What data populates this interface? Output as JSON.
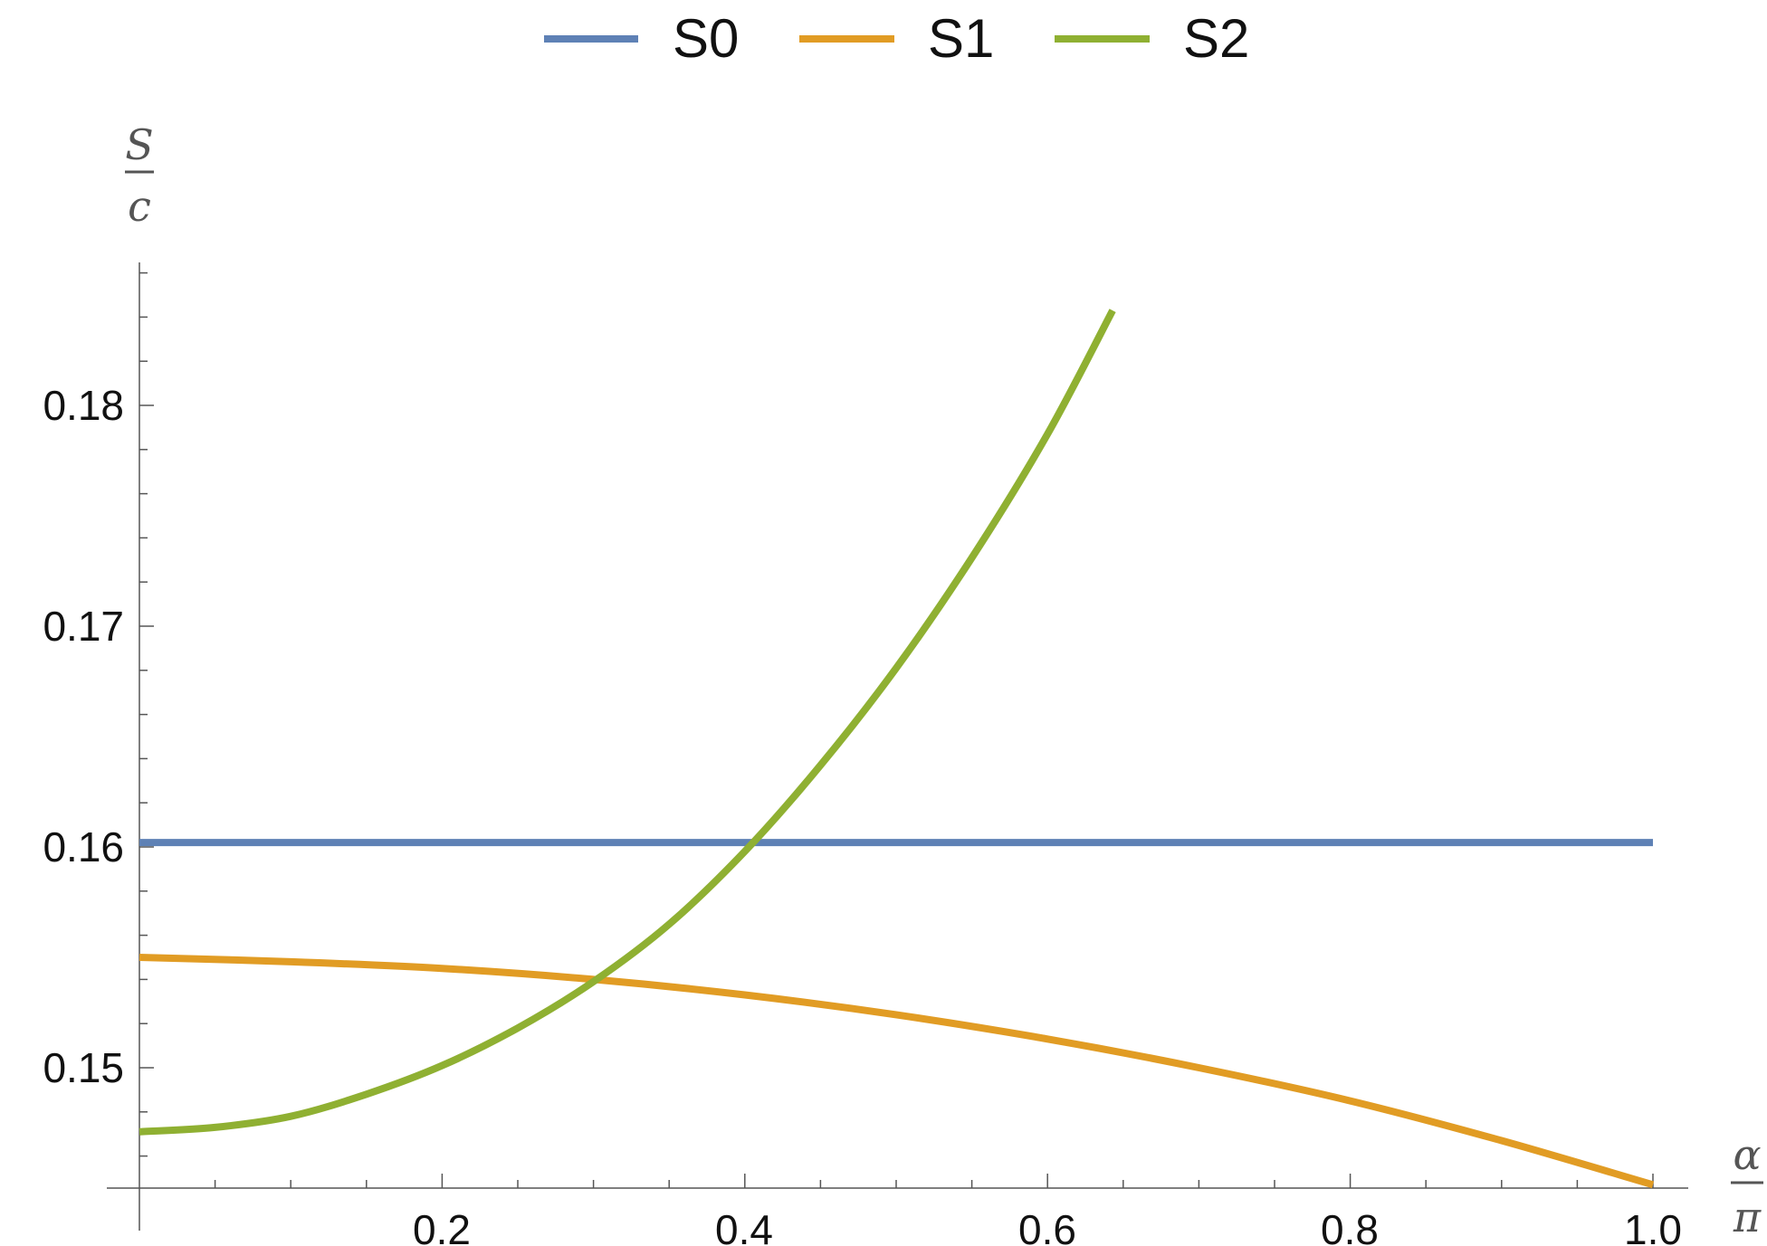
{
  "chart_data": {
    "type": "line",
    "legend": [
      "S0",
      "S1",
      "S2"
    ],
    "legend_placement": "top-center",
    "xlabel": {
      "numerator": "α",
      "denominator": "π"
    },
    "ylabel": {
      "numerator": "S",
      "denominator": "c"
    },
    "xlim": [
      0,
      1.0
    ],
    "ylim": [
      0.1447,
      0.1875
    ],
    "x_ticks": [
      "0.2",
      "0.4",
      "0.6",
      "0.8",
      "1.0"
    ],
    "y_ticks": [
      "0.15",
      "0.16",
      "0.17",
      "0.18"
    ],
    "grid": false,
    "series": [
      {
        "name": "S0",
        "color": "#5e81b5",
        "x": [
          0.0,
          0.1,
          0.2,
          0.3,
          0.4,
          0.5,
          0.6,
          0.7,
          0.8,
          0.9,
          1.0
        ],
        "values": [
          0.1602,
          0.1602,
          0.1602,
          0.1602,
          0.1602,
          0.1602,
          0.1602,
          0.1602,
          0.1602,
          0.1602,
          0.1602
        ]
      },
      {
        "name": "S1",
        "color": "#e19c24",
        "x": [
          0.0,
          0.1,
          0.2,
          0.3,
          0.4,
          0.5,
          0.6,
          0.7,
          0.8,
          0.9,
          1.0
        ],
        "values": [
          0.155,
          0.1548,
          0.1545,
          0.154,
          0.1533,
          0.1524,
          0.1513,
          0.15,
          0.1485,
          0.1467,
          0.1447
        ]
      },
      {
        "name": "S2",
        "color": "#8fb032",
        "x": [
          0.0,
          0.05,
          0.1,
          0.15,
          0.2,
          0.25,
          0.3,
          0.35,
          0.4,
          0.45,
          0.5,
          0.55,
          0.6,
          0.643
        ],
        "values": [
          0.1471,
          0.1473,
          0.1478,
          0.1488,
          0.1501,
          0.1518,
          0.1539,
          0.1565,
          0.1598,
          0.1637,
          0.1681,
          0.1731,
          0.1787,
          0.1843
        ]
      }
    ]
  }
}
